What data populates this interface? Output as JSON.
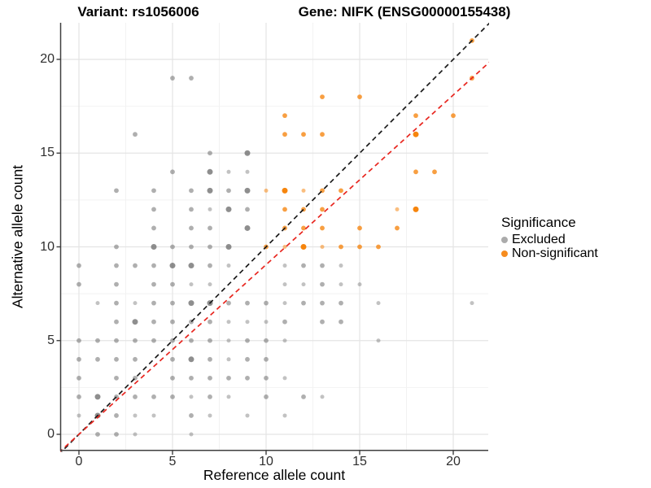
{
  "header": {
    "variant_title": "Variant: rs1056006",
    "gene_title": "Gene: NIFK (ENSG00000155438)"
  },
  "legend": {
    "title": "Significance",
    "items": [
      {
        "label": "Excluded",
        "color": "#ABABAB"
      },
      {
        "label": "Non-significant",
        "color": "#F68C1E"
      }
    ]
  },
  "colors": {
    "background": "#FFFFFF",
    "grid_major": "#E4E4E4",
    "grid_minor": "#F2F2F2",
    "axis_line": "#3F3F3F",
    "tick_text": "#2E2E2E",
    "identity_line": "#1A1A1A",
    "ratio_line": "#E8261F",
    "excluded_point": "#6E6E6E",
    "nonsignificant_point": "#F67E00"
  },
  "chart_data": {
    "type": "scatter",
    "title_left": "Variant: rs1056006",
    "title_right": "Gene: NIFK (ENSG00000155438)",
    "xlabel": "Reference allele count",
    "ylabel": "Alternative allele count",
    "xlim": [
      -1,
      21.9
    ],
    "ylim": [
      -0.85,
      21.85
    ],
    "x_ticks": [
      0,
      5,
      10,
      15,
      20
    ],
    "y_ticks": [
      0,
      5,
      10,
      15,
      20
    ],
    "grid": "major and minor gridlines, minor at 2.5 intervals",
    "legend_position": "right",
    "legend_title": "Significance",
    "point_format": "[reference_allele_count, alternative_allele_count, size_class] where size_class 1=faint/small 2=normal 3=dark/large(overplotted)",
    "series": [
      {
        "name": "Excluded",
        "color": "#6E6E6E",
        "points": [
          [
            5,
            19,
            2
          ],
          [
            6,
            19,
            2
          ],
          [
            3,
            16,
            2
          ],
          [
            7,
            15,
            2
          ],
          [
            9,
            15,
            3
          ],
          [
            5,
            14,
            2
          ],
          [
            7,
            14,
            3
          ],
          [
            8,
            14,
            1
          ],
          [
            9,
            14,
            1
          ],
          [
            2,
            13,
            2
          ],
          [
            4,
            13,
            2
          ],
          [
            6,
            13,
            2
          ],
          [
            7,
            13,
            3
          ],
          [
            8,
            13,
            2
          ],
          [
            9,
            13,
            3
          ],
          [
            4,
            12,
            2
          ],
          [
            6,
            12,
            2
          ],
          [
            7,
            12,
            1
          ],
          [
            8,
            12,
            3
          ],
          [
            9,
            12,
            2
          ],
          [
            4,
            11,
            2
          ],
          [
            6,
            11,
            2
          ],
          [
            7,
            11,
            2
          ],
          [
            9,
            11,
            3
          ],
          [
            2,
            10,
            2
          ],
          [
            4,
            10,
            3
          ],
          [
            5,
            10,
            2
          ],
          [
            6,
            10,
            2
          ],
          [
            7,
            10,
            2
          ],
          [
            8,
            10,
            3
          ],
          [
            0,
            9,
            2
          ],
          [
            2,
            9,
            2
          ],
          [
            3,
            9,
            2
          ],
          [
            4,
            9,
            2
          ],
          [
            5,
            9,
            3
          ],
          [
            6,
            9,
            3
          ],
          [
            7,
            9,
            2
          ],
          [
            8,
            9,
            1
          ],
          [
            11,
            9,
            1
          ],
          [
            12,
            9,
            2
          ],
          [
            13,
            9,
            2
          ],
          [
            14,
            9,
            1
          ],
          [
            0,
            8,
            2
          ],
          [
            2,
            8,
            2
          ],
          [
            4,
            8,
            2
          ],
          [
            5,
            8,
            2
          ],
          [
            6,
            8,
            1
          ],
          [
            7,
            8,
            1
          ],
          [
            11,
            8,
            1
          ],
          [
            12,
            8,
            1
          ],
          [
            13,
            8,
            2
          ],
          [
            14,
            8,
            1
          ],
          [
            15,
            8,
            1
          ],
          [
            1,
            7,
            1
          ],
          [
            2,
            7,
            2
          ],
          [
            3,
            7,
            1
          ],
          [
            4,
            7,
            2
          ],
          [
            5,
            7,
            2
          ],
          [
            6,
            7,
            3
          ],
          [
            7,
            7,
            3
          ],
          [
            8,
            7,
            2
          ],
          [
            9,
            7,
            2
          ],
          [
            10,
            7,
            2
          ],
          [
            11,
            7,
            1
          ],
          [
            12,
            7,
            2
          ],
          [
            13,
            7,
            2
          ],
          [
            14,
            7,
            2
          ],
          [
            16,
            7,
            1
          ],
          [
            21,
            7,
            1
          ],
          [
            2,
            6,
            2
          ],
          [
            3,
            6,
            3
          ],
          [
            4,
            6,
            2
          ],
          [
            5,
            6,
            2
          ],
          [
            6,
            6,
            2
          ],
          [
            7,
            6,
            2
          ],
          [
            8,
            6,
            1
          ],
          [
            9,
            6,
            1
          ],
          [
            10,
            6,
            1
          ],
          [
            11,
            6,
            2
          ],
          [
            13,
            6,
            2
          ],
          [
            14,
            6,
            2
          ],
          [
            0,
            5,
            2
          ],
          [
            1,
            5,
            2
          ],
          [
            2,
            5,
            2
          ],
          [
            3,
            5,
            2
          ],
          [
            4,
            5,
            2
          ],
          [
            5,
            5,
            2
          ],
          [
            6,
            5,
            2
          ],
          [
            7,
            5,
            2
          ],
          [
            8,
            5,
            1
          ],
          [
            9,
            5,
            2
          ],
          [
            10,
            5,
            2
          ],
          [
            11,
            5,
            1
          ],
          [
            16,
            5,
            1
          ],
          [
            0,
            4,
            2
          ],
          [
            1,
            4,
            2
          ],
          [
            2,
            4,
            2
          ],
          [
            3,
            4,
            2
          ],
          [
            5,
            4,
            2
          ],
          [
            6,
            4,
            3
          ],
          [
            7,
            4,
            2
          ],
          [
            8,
            4,
            1
          ],
          [
            9,
            4,
            2
          ],
          [
            10,
            4,
            2
          ],
          [
            0,
            3,
            2
          ],
          [
            2,
            3,
            2
          ],
          [
            3,
            3,
            2
          ],
          [
            5,
            3,
            2
          ],
          [
            6,
            3,
            2
          ],
          [
            7,
            3,
            2
          ],
          [
            8,
            3,
            2
          ],
          [
            9,
            3,
            2
          ],
          [
            10,
            3,
            2
          ],
          [
            11,
            3,
            1
          ],
          [
            0,
            2,
            2
          ],
          [
            1,
            2,
            3
          ],
          [
            2,
            2,
            2
          ],
          [
            3,
            2,
            2
          ],
          [
            4,
            2,
            2
          ],
          [
            5,
            2,
            2
          ],
          [
            6,
            2,
            1
          ],
          [
            7,
            2,
            2
          ],
          [
            8,
            2,
            1
          ],
          [
            10,
            2,
            2
          ],
          [
            12,
            2,
            2
          ],
          [
            13,
            2,
            1
          ],
          [
            0,
            1,
            1
          ],
          [
            1,
            1,
            3
          ],
          [
            2,
            1,
            2
          ],
          [
            3,
            1,
            1
          ],
          [
            4,
            1,
            1
          ],
          [
            6,
            1,
            2
          ],
          [
            7,
            1,
            1
          ],
          [
            9,
            1,
            1
          ],
          [
            11,
            1,
            1
          ],
          [
            1,
            0,
            2
          ],
          [
            2,
            0,
            2
          ],
          [
            3,
            0,
            1
          ],
          [
            6,
            0,
            1
          ]
        ]
      },
      {
        "name": "Non-significant",
        "color": "#F67E00",
        "points": [
          [
            21,
            21,
            2
          ],
          [
            21,
            19,
            2
          ],
          [
            13,
            18,
            2
          ],
          [
            15,
            18,
            2
          ],
          [
            11,
            17,
            2
          ],
          [
            18,
            17,
            2
          ],
          [
            20,
            17,
            2
          ],
          [
            11,
            16,
            2
          ],
          [
            12,
            16,
            2
          ],
          [
            13,
            16,
            2
          ],
          [
            18,
            16,
            3
          ],
          [
            18,
            14,
            2
          ],
          [
            19,
            14,
            2
          ],
          [
            10,
            13,
            1
          ],
          [
            11,
            13,
            3
          ],
          [
            12,
            13,
            1
          ],
          [
            13,
            13,
            2
          ],
          [
            14,
            13,
            2
          ],
          [
            11,
            12,
            2
          ],
          [
            12,
            12,
            2
          ],
          [
            13,
            12,
            2
          ],
          [
            17,
            12,
            1
          ],
          [
            18,
            12,
            3
          ],
          [
            11,
            11,
            2
          ],
          [
            12,
            11,
            2
          ],
          [
            13,
            11,
            2
          ],
          [
            15,
            11,
            2
          ],
          [
            17,
            11,
            2
          ],
          [
            10,
            10,
            2
          ],
          [
            11,
            10,
            1
          ],
          [
            12,
            10,
            3
          ],
          [
            13,
            10,
            1
          ],
          [
            14,
            10,
            2
          ],
          [
            15,
            10,
            2
          ],
          [
            16,
            10,
            2
          ]
        ]
      }
    ],
    "reference_lines": [
      {
        "name": "identity",
        "style": "dashed",
        "color": "#1A1A1A",
        "slope": 1,
        "intercept": 0
      },
      {
        "name": "expected-ratio",
        "style": "dashed",
        "color": "#E8261F",
        "slope": 0.905,
        "intercept": 0
      }
    ]
  }
}
